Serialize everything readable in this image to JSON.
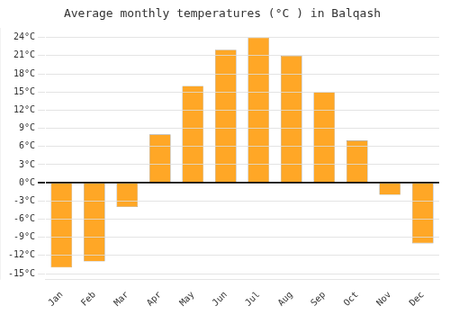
{
  "chart_data": {
    "type": "bar",
    "title": "Average monthly temperatures (°C ) in Balqash",
    "categories": [
      "Jan",
      "Feb",
      "Mar",
      "Apr",
      "May",
      "Jun",
      "Jul",
      "Aug",
      "Sep",
      "Oct",
      "Nov",
      "Dec"
    ],
    "values": [
      -14,
      -13,
      -4,
      8,
      16,
      22,
      24,
      21,
      15,
      7,
      -2,
      -10
    ],
    "color": "#FFA726",
    "ylim": [
      -16,
      25.5
    ],
    "yticks": [
      {
        "value": -15,
        "label": "-15°C"
      },
      {
        "value": -12,
        "label": "-12°C"
      },
      {
        "value": -9,
        "label": "-9°C"
      },
      {
        "value": -6,
        "label": "-6°C"
      },
      {
        "value": -3,
        "label": "-3°C"
      },
      {
        "value": 0,
        "label": "0°C"
      },
      {
        "value": 3,
        "label": "3°C"
      },
      {
        "value": 6,
        "label": "6°C"
      },
      {
        "value": 9,
        "label": "9°C"
      },
      {
        "value": 12,
        "label": "12°C"
      },
      {
        "value": 15,
        "label": "15°C"
      },
      {
        "value": 18,
        "label": "18°C"
      },
      {
        "value": 21,
        "label": "21°C"
      },
      {
        "value": 24,
        "label": "24°C"
      }
    ],
    "grid": true
  }
}
